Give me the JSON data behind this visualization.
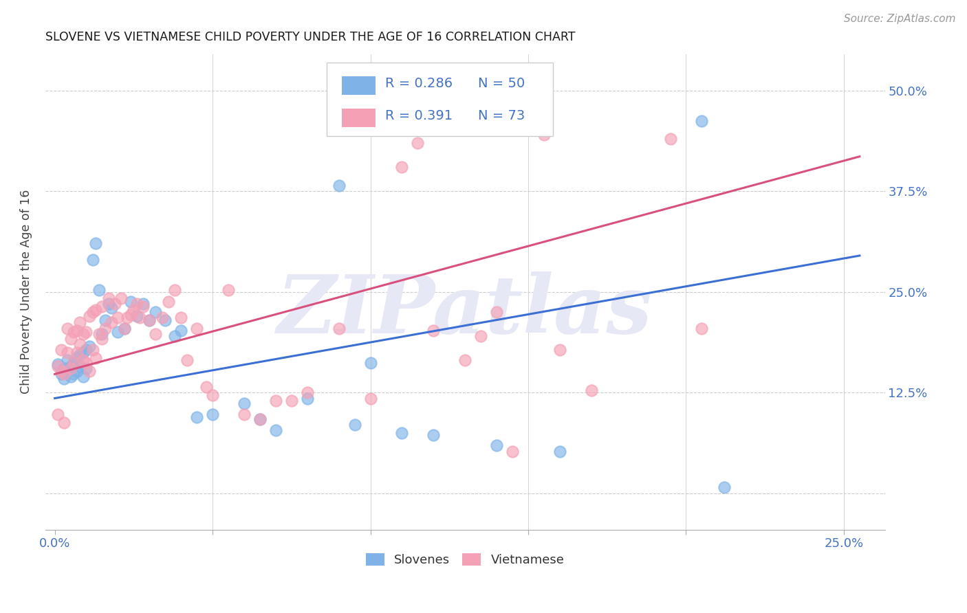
{
  "title": "SLOVENE VS VIETNAMESE CHILD POVERTY UNDER THE AGE OF 16 CORRELATION CHART",
  "source": "Source: ZipAtlas.com",
  "ylabel": "Child Poverty Under the Age of 16",
  "x_ticks": [
    0.0,
    0.05,
    0.1,
    0.15,
    0.2,
    0.25
  ],
  "x_tick_labels": [
    "0.0%",
    "",
    "",
    "",
    "",
    "25.0%"
  ],
  "y_ticks": [
    0.0,
    0.125,
    0.25,
    0.375,
    0.5
  ],
  "y_tick_labels": [
    "",
    "12.5%",
    "25.0%",
    "37.5%",
    "50.0%"
  ],
  "xlim": [
    -0.003,
    0.263
  ],
  "ylim": [
    -0.045,
    0.545
  ],
  "slovene_R": 0.286,
  "slovene_N": 50,
  "vietnamese_R": 0.391,
  "vietnamese_N": 73,
  "slovene_color": "#7fb3e8",
  "vietnamese_color": "#f4a0b5",
  "slovene_line_color": "#3b6fd4",
  "vietnamese_line_color": "#d94f7e",
  "watermark": "ZIPatlas",
  "legend_bottom": [
    "Slovenes",
    "Vietnamese"
  ],
  "slovene_line_x0": 0.0,
  "slovene_line_y0": 0.118,
  "slovene_line_x1": 0.255,
  "slovene_line_y1": 0.295,
  "vietnamese_line_x0": 0.0,
  "vietnamese_line_y0": 0.148,
  "vietnamese_line_x1": 0.255,
  "vietnamese_line_y1": 0.418,
  "slovene_x": [
    0.001,
    0.002,
    0.003,
    0.003,
    0.004,
    0.005,
    0.005,
    0.006,
    0.006,
    0.007,
    0.007,
    0.008,
    0.008,
    0.009,
    0.009,
    0.01,
    0.01,
    0.011,
    0.012,
    0.013,
    0.014,
    0.015,
    0.016,
    0.017,
    0.018,
    0.02,
    0.022,
    0.024,
    0.026,
    0.028,
    0.03,
    0.032,
    0.035,
    0.038,
    0.04,
    0.045,
    0.05,
    0.06,
    0.065,
    0.07,
    0.08,
    0.09,
    0.095,
    0.1,
    0.11,
    0.12,
    0.14,
    0.16,
    0.205,
    0.212
  ],
  "slovene_y": [
    0.16,
    0.148,
    0.155,
    0.142,
    0.165,
    0.158,
    0.145,
    0.162,
    0.148,
    0.168,
    0.152,
    0.172,
    0.158,
    0.175,
    0.145,
    0.178,
    0.155,
    0.182,
    0.29,
    0.31,
    0.252,
    0.198,
    0.215,
    0.235,
    0.23,
    0.2,
    0.205,
    0.238,
    0.22,
    0.235,
    0.215,
    0.225,
    0.215,
    0.195,
    0.202,
    0.095,
    0.098,
    0.112,
    0.092,
    0.078,
    0.118,
    0.382,
    0.085,
    0.162,
    0.075,
    0.072,
    0.06,
    0.052,
    0.462,
    0.008
  ],
  "vietnamese_x": [
    0.001,
    0.001,
    0.002,
    0.002,
    0.003,
    0.003,
    0.004,
    0.004,
    0.005,
    0.005,
    0.006,
    0.006,
    0.007,
    0.007,
    0.008,
    0.008,
    0.009,
    0.009,
    0.01,
    0.01,
    0.011,
    0.011,
    0.012,
    0.012,
    0.013,
    0.013,
    0.014,
    0.015,
    0.015,
    0.016,
    0.017,
    0.018,
    0.019,
    0.02,
    0.021,
    0.022,
    0.023,
    0.024,
    0.025,
    0.026,
    0.027,
    0.028,
    0.03,
    0.032,
    0.034,
    0.036,
    0.038,
    0.04,
    0.042,
    0.045,
    0.048,
    0.05,
    0.055,
    0.06,
    0.065,
    0.07,
    0.075,
    0.08,
    0.09,
    0.1,
    0.105,
    0.11,
    0.115,
    0.12,
    0.13,
    0.135,
    0.14,
    0.145,
    0.155,
    0.16,
    0.17,
    0.195,
    0.205
  ],
  "vietnamese_y": [
    0.158,
    0.098,
    0.152,
    0.178,
    0.148,
    0.088,
    0.205,
    0.175,
    0.192,
    0.155,
    0.162,
    0.2,
    0.202,
    0.175,
    0.212,
    0.185,
    0.198,
    0.165,
    0.162,
    0.2,
    0.152,
    0.22,
    0.178,
    0.225,
    0.168,
    0.228,
    0.198,
    0.192,
    0.232,
    0.205,
    0.242,
    0.212,
    0.235,
    0.218,
    0.242,
    0.205,
    0.218,
    0.222,
    0.228,
    0.235,
    0.218,
    0.232,
    0.215,
    0.198,
    0.218,
    0.238,
    0.252,
    0.218,
    0.165,
    0.205,
    0.132,
    0.122,
    0.252,
    0.098,
    0.092,
    0.115,
    0.115,
    0.125,
    0.205,
    0.118,
    0.452,
    0.405,
    0.435,
    0.202,
    0.165,
    0.195,
    0.225,
    0.052,
    0.445,
    0.178,
    0.128,
    0.44,
    0.205
  ]
}
